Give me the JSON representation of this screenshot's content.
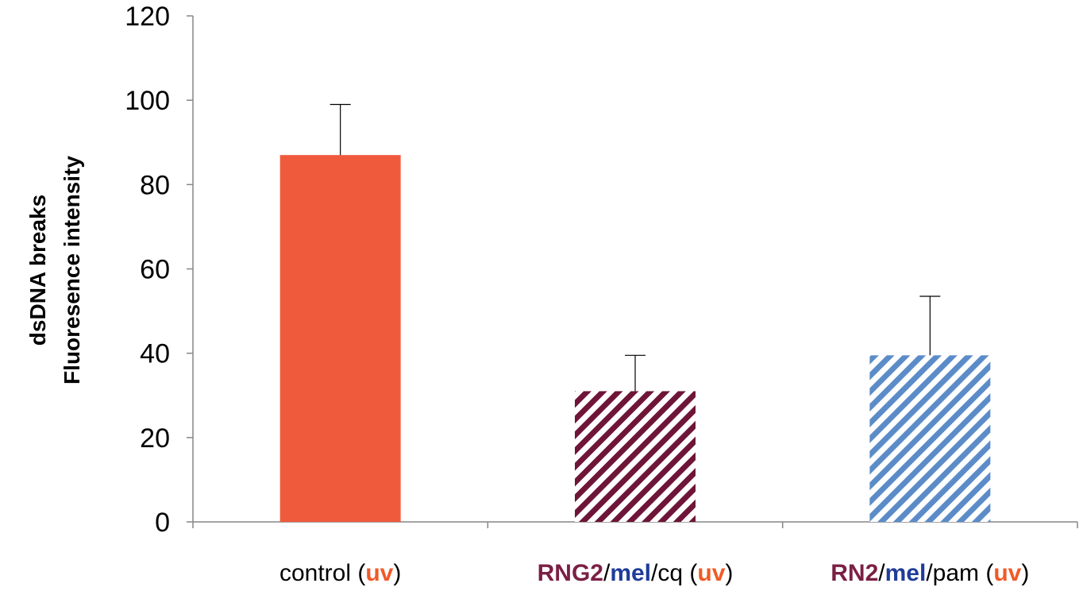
{
  "chart_data": {
    "type": "bar",
    "ylabel": [
      "dsDNA breaks",
      "Fluoresence intensity"
    ],
    "ylim": [
      0,
      120
    ],
    "yticks": [
      0,
      20,
      40,
      60,
      80,
      100,
      120
    ],
    "grid": false,
    "categories": [
      {
        "label": "control (uv)",
        "segments": [
          {
            "text": "control (",
            "color": "#000000",
            "bold": false
          },
          {
            "text": "uv",
            "color": "#F05A28",
            "bold": true
          },
          {
            "text": ")",
            "color": "#000000",
            "bold": false
          }
        ]
      },
      {
        "label": "RNG2/mel/cq (uv)",
        "segments": [
          {
            "text": "RNG2",
            "color": "#7B1F45",
            "bold": true
          },
          {
            "text": "/",
            "color": "#000000",
            "bold": false
          },
          {
            "text": "mel",
            "color": "#1F3C9A",
            "bold": true
          },
          {
            "text": "/cq (",
            "color": "#000000",
            "bold": false
          },
          {
            "text": "uv",
            "color": "#F05A28",
            "bold": true
          },
          {
            "text": ")",
            "color": "#000000",
            "bold": false
          }
        ]
      },
      {
        "label": "RN2/mel/pam (uv)",
        "segments": [
          {
            "text": "RN2",
            "color": "#7B1F45",
            "bold": true
          },
          {
            "text": "/",
            "color": "#000000",
            "bold": false
          },
          {
            "text": "mel",
            "color": "#1F3C9A",
            "bold": true
          },
          {
            "text": "/pam (",
            "color": "#000000",
            "bold": false
          },
          {
            "text": "uv",
            "color": "#F05A28",
            "bold": true
          },
          {
            "text": ")",
            "color": "#000000",
            "bold": false
          }
        ]
      }
    ],
    "values": [
      87,
      31,
      39.5
    ],
    "error_plus": [
      12,
      8.5,
      14
    ],
    "bar_styles": [
      {
        "fill": "solid",
        "color": "#F05A3C"
      },
      {
        "fill": "diagonal-stripes",
        "color": "#6E1538"
      },
      {
        "fill": "diagonal-stripes",
        "color": "#5B8CC8"
      }
    ]
  }
}
